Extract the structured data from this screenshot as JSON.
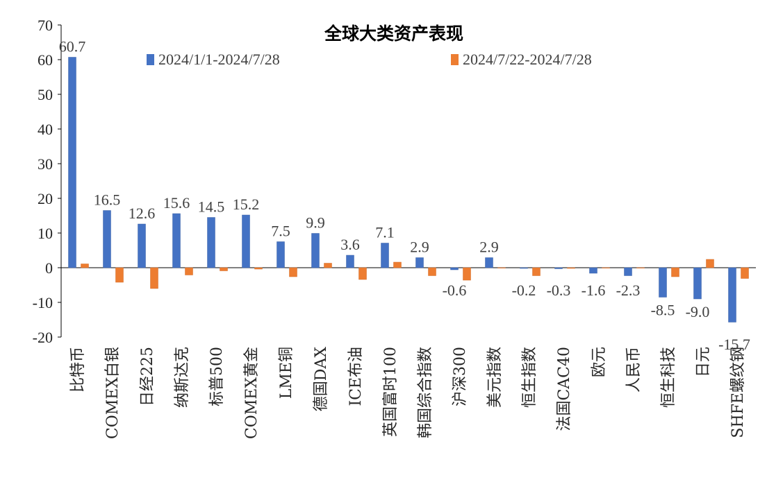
{
  "chart_data": {
    "type": "bar",
    "title": "全球大类资产表现",
    "xlabel": "",
    "ylabel": "",
    "ylim": [
      -20,
      70
    ],
    "yticks": [
      -20,
      -10,
      0,
      10,
      20,
      30,
      40,
      50,
      60,
      70
    ],
    "grid": false,
    "legend_position": "top",
    "categories": [
      "比特币",
      "COMEX白银",
      "日经225",
      "纳斯达克",
      "标普500",
      "COMEX黄金",
      "LME铜",
      "德国DAX",
      "ICE布油",
      "英国富时100",
      "韩国综合指数",
      "沪深300",
      "美元指数",
      "恒生指数",
      "法国CAC40",
      "欧元",
      "人民币",
      "恒生科技",
      "日元",
      "SHFE螺纹钢"
    ],
    "series": [
      {
        "name": "2024/1/1-2024/7/28",
        "color": "#4472C4",
        "values": [
          60.7,
          16.5,
          12.6,
          15.6,
          14.5,
          15.2,
          7.5,
          9.9,
          3.6,
          7.1,
          2.9,
          -0.6,
          2.9,
          -0.2,
          -0.3,
          -1.6,
          -2.3,
          -8.5,
          -9.0,
          -15.7
        ],
        "labels": [
          "60.7",
          "16.5",
          "12.6",
          "15.6",
          "14.5",
          "15.2",
          "7.5",
          "9.9",
          "3.6",
          "7.1",
          "2.9",
          "-0.6",
          "2.9",
          "-0.2",
          "-0.3",
          "-1.6",
          "-2.3",
          "-8.5",
          "-9.0",
          "-15.7"
        ]
      },
      {
        "name": "2024/7/22-2024/7/28",
        "color": "#ED7D31",
        "values": [
          1.1,
          -4.2,
          -6.0,
          -2.1,
          -0.9,
          -0.4,
          -2.6,
          1.3,
          -3.4,
          1.6,
          -2.3,
          -3.6,
          0.0,
          -2.3,
          -0.2,
          0.0,
          0.0,
          -2.6,
          2.4,
          -3.1
        ]
      }
    ]
  }
}
